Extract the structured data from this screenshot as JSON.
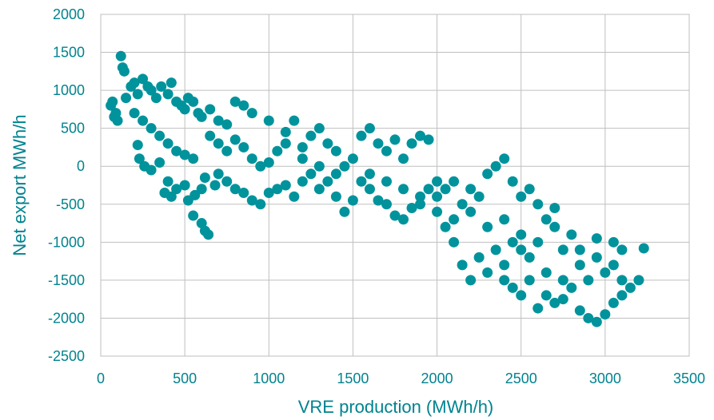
{
  "chart_data": {
    "type": "scatter",
    "title": "",
    "xlabel": "VRE production (MWh/h)",
    "ylabel": "Net export MWh/h",
    "xlim": [
      0,
      3500
    ],
    "ylim": [
      -2500,
      2000
    ],
    "x_ticks": [
      "0",
      "500",
      "1000",
      "1500",
      "2000",
      "2500",
      "3000",
      "3500"
    ],
    "y_ticks": [
      "2000",
      "1500",
      "1000",
      "500",
      "0",
      "-500",
      "-1000",
      "-1500",
      "-2000",
      "-2500"
    ],
    "grid": true,
    "legend": "none",
    "marker_color": "#00939C",
    "series": [
      {
        "points": [
          [
            120,
            1450
          ],
          [
            130,
            1300
          ],
          [
            140,
            1250
          ],
          [
            60,
            800
          ],
          [
            70,
            850
          ],
          [
            80,
            650
          ],
          [
            90,
            700
          ],
          [
            100,
            600
          ],
          [
            150,
            900
          ],
          [
            180,
            1050
          ],
          [
            200,
            1100
          ],
          [
            220,
            950
          ],
          [
            250,
            1150
          ],
          [
            280,
            1050
          ],
          [
            300,
            1000
          ],
          [
            330,
            900
          ],
          [
            360,
            1050
          ],
          [
            400,
            950
          ],
          [
            420,
            1100
          ],
          [
            450,
            850
          ],
          [
            480,
            800
          ],
          [
            500,
            750
          ],
          [
            520,
            900
          ],
          [
            550,
            850
          ],
          [
            580,
            700
          ],
          [
            600,
            650
          ],
          [
            650,
            750
          ],
          [
            700,
            600
          ],
          [
            750,
            550
          ],
          [
            800,
            850
          ],
          [
            850,
            800
          ],
          [
            900,
            700
          ],
          [
            200,
            700
          ],
          [
            250,
            600
          ],
          [
            300,
            500
          ],
          [
            350,
            400
          ],
          [
            400,
            300
          ],
          [
            450,
            200
          ],
          [
            500,
            150
          ],
          [
            550,
            100
          ],
          [
            220,
            280
          ],
          [
            230,
            100
          ],
          [
            260,
            0
          ],
          [
            300,
            -50
          ],
          [
            350,
            50
          ],
          [
            400,
            -200
          ],
          [
            450,
            -300
          ],
          [
            380,
            -350
          ],
          [
            420,
            -400
          ],
          [
            500,
            -250
          ],
          [
            520,
            -450
          ],
          [
            560,
            -380
          ],
          [
            600,
            -300
          ],
          [
            620,
            -150
          ],
          [
            680,
            -250
          ],
          [
            700,
            -100
          ],
          [
            550,
            -650
          ],
          [
            600,
            -750
          ],
          [
            620,
            -850
          ],
          [
            640,
            -900
          ],
          [
            650,
            400
          ],
          [
            700,
            300
          ],
          [
            750,
            200
          ],
          [
            800,
            350
          ],
          [
            850,
            250
          ],
          [
            900,
            100
          ],
          [
            950,
            0
          ],
          [
            1000,
            50
          ],
          [
            1050,
            200
          ],
          [
            1100,
            450
          ],
          [
            1150,
            600
          ],
          [
            1200,
            250
          ],
          [
            1250,
            400
          ],
          [
            1300,
            500
          ],
          [
            1350,
            300
          ],
          [
            1400,
            200
          ],
          [
            750,
            -200
          ],
          [
            800,
            -300
          ],
          [
            850,
            -350
          ],
          [
            900,
            -450
          ],
          [
            950,
            -500
          ],
          [
            1000,
            -350
          ],
          [
            1050,
            -300
          ],
          [
            1100,
            -250
          ],
          [
            1150,
            -400
          ],
          [
            1200,
            -200
          ],
          [
            1250,
            -100
          ],
          [
            1300,
            -300
          ],
          [
            1350,
            -200
          ],
          [
            1400,
            -400
          ],
          [
            1450,
            -600
          ],
          [
            1500,
            -450
          ],
          [
            1500,
            100
          ],
          [
            1550,
            400
          ],
          [
            1600,
            500
          ],
          [
            1650,
            300
          ],
          [
            1700,
            200
          ],
          [
            1750,
            350
          ],
          [
            1800,
            100
          ],
          [
            1850,
            300
          ],
          [
            1900,
            400
          ],
          [
            1950,
            350
          ],
          [
            1550,
            -200
          ],
          [
            1600,
            -300
          ],
          [
            1650,
            -450
          ],
          [
            1700,
            -500
          ],
          [
            1750,
            -650
          ],
          [
            1800,
            -700
          ],
          [
            1850,
            -550
          ],
          [
            1900,
            -400
          ],
          [
            1950,
            -300
          ],
          [
            2000,
            -200
          ],
          [
            2000,
            -600
          ],
          [
            2050,
            -800
          ],
          [
            2100,
            -700
          ],
          [
            2150,
            -500
          ],
          [
            2200,
            -300
          ],
          [
            2250,
            -400
          ],
          [
            2300,
            -100
          ],
          [
            2350,
            0
          ],
          [
            2400,
            100
          ],
          [
            2450,
            -200
          ],
          [
            2500,
            -400
          ],
          [
            2100,
            -1000
          ],
          [
            2150,
            -1300
          ],
          [
            2200,
            -1500
          ],
          [
            2250,
            -1200
          ],
          [
            2300,
            -1400
          ],
          [
            2350,
            -1100
          ],
          [
            2400,
            -1300
          ],
          [
            2450,
            -1000
          ],
          [
            2500,
            -900
          ],
          [
            2550,
            -1200
          ],
          [
            2600,
            -1000
          ],
          [
            2650,
            -700
          ],
          [
            2700,
            -800
          ],
          [
            2750,
            -1100
          ],
          [
            2800,
            -900
          ],
          [
            2850,
            -1300
          ],
          [
            2900,
            -1500
          ],
          [
            2950,
            -1200
          ],
          [
            3000,
            -1400
          ],
          [
            3050,
            -1300
          ],
          [
            3100,
            -1500
          ],
          [
            3150,
            -1600
          ],
          [
            3200,
            -1500
          ],
          [
            3230,
            -1080
          ],
          [
            2600,
            -1870
          ],
          [
            2650,
            -1700
          ],
          [
            2700,
            -1800
          ],
          [
            2750,
            -1750
          ],
          [
            2800,
            -1600
          ],
          [
            2850,
            -1900
          ],
          [
            2900,
            -2000
          ],
          [
            2950,
            -2050
          ],
          [
            3000,
            -1950
          ],
          [
            3050,
            -1800
          ],
          [
            3100,
            -1700
          ],
          [
            2400,
            -1500
          ],
          [
            2450,
            -1600
          ],
          [
            2500,
            -1700
          ],
          [
            2550,
            -1500
          ],
          [
            2650,
            -1400
          ],
          [
            2750,
            -1500
          ],
          [
            2850,
            -1100
          ],
          [
            2950,
            -950
          ],
          [
            3050,
            -1000
          ],
          [
            3100,
            -1100
          ],
          [
            2550,
            -300
          ],
          [
            2600,
            -500
          ],
          [
            2700,
            -550
          ],
          [
            1000,
            600
          ],
          [
            1100,
            300
          ],
          [
            1200,
            100
          ],
          [
            1300,
            0
          ],
          [
            1400,
            -100
          ],
          [
            1450,
            0
          ],
          [
            1600,
            -100
          ],
          [
            1700,
            -200
          ],
          [
            1800,
            -300
          ],
          [
            1900,
            -500
          ],
          [
            2000,
            -400
          ],
          [
            2050,
            -300
          ],
          [
            2100,
            -200
          ],
          [
            2200,
            -600
          ],
          [
            2300,
            -800
          ],
          [
            2400,
            -700
          ],
          [
            2500,
            -1100
          ]
        ]
      }
    ]
  }
}
